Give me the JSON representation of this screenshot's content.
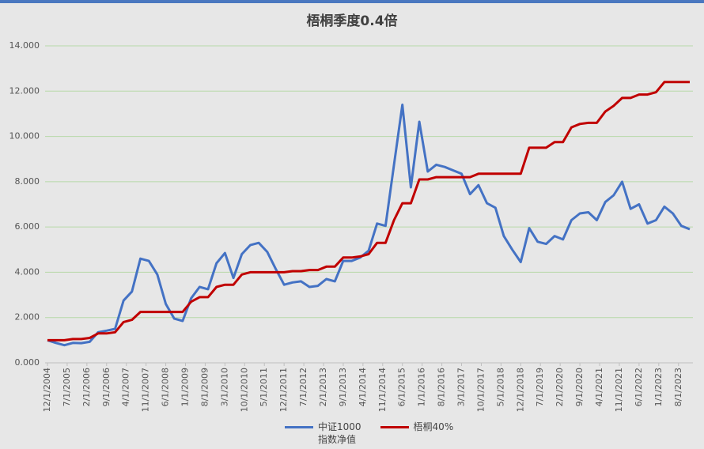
{
  "chart_data": {
    "type": "line",
    "title": "梧桐季度0.4倍",
    "x": [
      "12/1/2004",
      "3/1/2005",
      "6/1/2005",
      "9/1/2005",
      "12/1/2005",
      "3/1/2006",
      "6/1/2006",
      "9/1/2006",
      "12/1/2006",
      "3/1/2007",
      "6/1/2007",
      "9/1/2007",
      "12/1/2007",
      "3/1/2008",
      "6/1/2008",
      "9/1/2008",
      "12/1/2008",
      "3/1/2009",
      "6/1/2009",
      "9/1/2009",
      "12/1/2009",
      "3/1/2010",
      "6/1/2010",
      "9/1/2010",
      "12/1/2010",
      "3/1/2011",
      "6/1/2011",
      "9/1/2011",
      "12/1/2011",
      "3/1/2012",
      "6/1/2012",
      "9/1/2012",
      "12/1/2012",
      "3/1/2013",
      "6/1/2013",
      "9/1/2013",
      "12/1/2013",
      "3/1/2014",
      "6/1/2014",
      "9/1/2014",
      "12/1/2014",
      "3/1/2015",
      "6/1/2015",
      "9/1/2015",
      "12/1/2015",
      "3/1/2016",
      "6/1/2016",
      "9/1/2016",
      "12/1/2016",
      "3/1/2017",
      "6/1/2017",
      "9/1/2017",
      "12/1/2017",
      "3/1/2018",
      "6/1/2018",
      "9/1/2018",
      "12/1/2018",
      "3/1/2019",
      "6/1/2019",
      "9/1/2019",
      "12/1/2019",
      "3/1/2020",
      "6/1/2020",
      "9/1/2020",
      "12/1/2020",
      "3/1/2021",
      "6/1/2021",
      "9/1/2021",
      "12/1/2021",
      "3/1/2022",
      "6/1/2022",
      "9/1/2022",
      "12/1/2022",
      "3/1/2023",
      "6/1/2023",
      "9/1/2023",
      "12/1/2023"
    ],
    "xlim": [
      "12/1/2004",
      "12/1/2023"
    ],
    "xticks": [
      "12/1/2004",
      "7/1/2005",
      "2/1/2006",
      "9/1/2006",
      "4/1/2007",
      "11/1/2007",
      "6/1/2008",
      "1/1/2009",
      "8/1/2009",
      "3/1/2010",
      "10/1/2010",
      "5/1/2011",
      "12/1/2011",
      "7/1/2012",
      "2/1/2013",
      "9/1/2013",
      "4/1/2014",
      "11/1/2014",
      "6/1/2015",
      "1/1/2016",
      "8/1/2016",
      "3/1/2017",
      "10/1/2017",
      "5/1/2018",
      "12/1/2018",
      "7/1/2019",
      "2/1/2020",
      "9/1/2020",
      "4/1/2021",
      "11/1/2021",
      "6/1/2022",
      "1/1/2023",
      "8/1/2023"
    ],
    "ylim": [
      0,
      14
    ],
    "yticks": [
      {
        "value": 0,
        "label": "0.000"
      },
      {
        "value": 2,
        "label": "2.000"
      },
      {
        "value": 4,
        "label": "4.000"
      },
      {
        "value": 6,
        "label": "6.000"
      },
      {
        "value": 8,
        "label": "8.000"
      },
      {
        "value": 10,
        "label": "10.000"
      },
      {
        "value": 12,
        "label": "12.000"
      },
      {
        "value": 14,
        "label": "14.000"
      }
    ],
    "grid": true,
    "legend": "bottom",
    "series": [
      {
        "name": "中证1000\n指数净值",
        "color": "#4472c4",
        "values": [
          1.0,
          0.88,
          0.78,
          0.88,
          0.87,
          0.93,
          1.35,
          1.42,
          1.5,
          2.75,
          3.15,
          4.6,
          4.5,
          3.9,
          2.6,
          1.95,
          1.85,
          2.85,
          3.35,
          3.25,
          4.4,
          4.85,
          3.75,
          4.8,
          5.2,
          5.3,
          4.9,
          4.15,
          3.45,
          3.55,
          3.6,
          3.35,
          3.4,
          3.7,
          3.6,
          4.5,
          4.5,
          4.65,
          4.95,
          6.15,
          6.05,
          8.75,
          11.4,
          7.75,
          10.65,
          8.45,
          8.75,
          8.65,
          8.5,
          8.35,
          7.45,
          7.85,
          7.05,
          6.85,
          5.6,
          5.0,
          4.45,
          5.95,
          5.35,
          5.25,
          5.6,
          5.45,
          6.3,
          6.6,
          6.65,
          6.3,
          7.1,
          7.4,
          8.0,
          6.8,
          7.0,
          6.15,
          6.3,
          6.9,
          6.6,
          6.05,
          5.9
        ]
      },
      {
        "name": "梧桐40%",
        "color": "#c00000",
        "values": [
          1.0,
          1.0,
          1.0,
          1.05,
          1.05,
          1.1,
          1.3,
          1.3,
          1.35,
          1.8,
          1.9,
          2.25,
          2.25,
          2.25,
          2.25,
          2.25,
          2.25,
          2.7,
          2.9,
          2.9,
          3.35,
          3.45,
          3.45,
          3.9,
          4.0,
          4.0,
          4.0,
          4.0,
          4.0,
          4.05,
          4.05,
          4.1,
          4.1,
          4.25,
          4.25,
          4.65,
          4.65,
          4.7,
          4.8,
          5.3,
          5.3,
          6.3,
          7.05,
          7.05,
          8.1,
          8.1,
          8.2,
          8.2,
          8.2,
          8.2,
          8.2,
          8.35,
          8.35,
          8.35,
          8.35,
          8.35,
          8.35,
          9.5,
          9.5,
          9.5,
          9.75,
          9.75,
          10.4,
          10.55,
          10.6,
          10.6,
          11.1,
          11.35,
          11.7,
          11.7,
          11.85,
          11.85,
          11.95,
          12.4,
          12.4,
          12.4,
          12.4
        ]
      }
    ]
  }
}
